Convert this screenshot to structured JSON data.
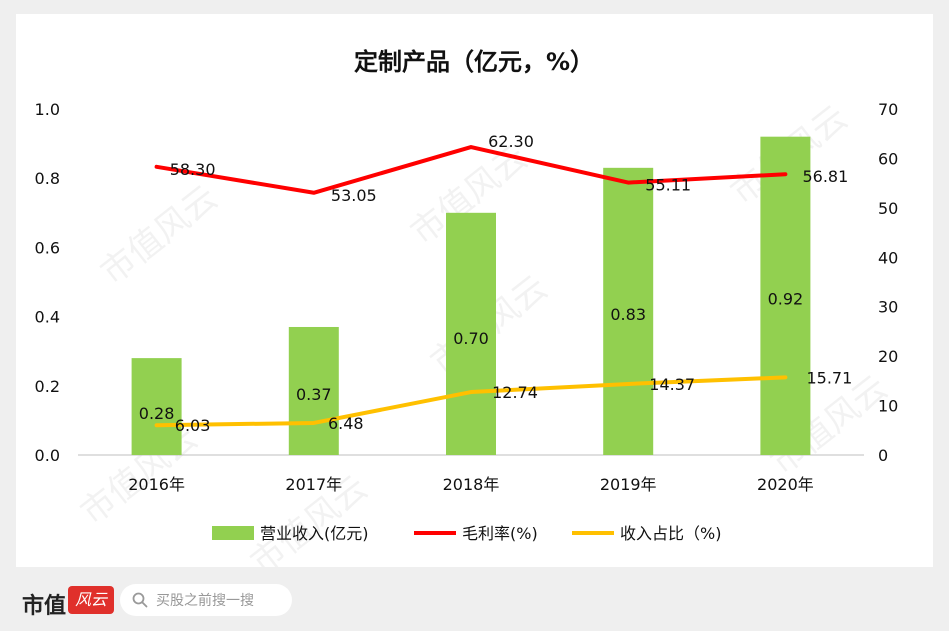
{
  "chart_data": {
    "type": "bar+line",
    "title": "定制产品（亿元，%）",
    "categories": [
      "2016年",
      "2017年",
      "2018年",
      "2019年",
      "2020年"
    ],
    "series": [
      {
        "name": "营业收入(亿元)",
        "type": "bar",
        "axis": "left",
        "color": "#92d050",
        "values": [
          0.28,
          0.37,
          0.7,
          0.83,
          0.92
        ],
        "labels": [
          "0.28",
          "0.37",
          "0.70",
          "0.83",
          "0.92"
        ]
      },
      {
        "name": "毛利率(%)",
        "type": "line",
        "axis": "right",
        "color": "#ff0000",
        "values": [
          58.3,
          53.05,
          62.3,
          55.11,
          56.81
        ],
        "labels": [
          "58.30",
          "53.05",
          "62.30",
          "55.11",
          "56.81"
        ]
      },
      {
        "name": "收入占比（%)",
        "type": "line",
        "axis": "right",
        "color": "#ffc000",
        "values": [
          6.03,
          6.48,
          12.74,
          14.37,
          15.71
        ],
        "labels": [
          "6.03",
          "6.48",
          "12.74",
          "14.37",
          "15.71"
        ]
      }
    ],
    "y_left": {
      "min": 0,
      "max": 1.0,
      "ticks": [
        "0.0",
        "0.2",
        "0.4",
        "0.6",
        "0.8",
        "1.0"
      ]
    },
    "y_right": {
      "min": 0,
      "max": 70,
      "ticks": [
        "0",
        "10",
        "20",
        "30",
        "40",
        "50",
        "60",
        "70"
      ]
    },
    "grid": false,
    "legend_position": "bottom"
  },
  "watermark": "市值风云",
  "footer": {
    "brand_text": "市值",
    "brand_mark": "风云",
    "search_placeholder": "买股之前搜一搜"
  }
}
